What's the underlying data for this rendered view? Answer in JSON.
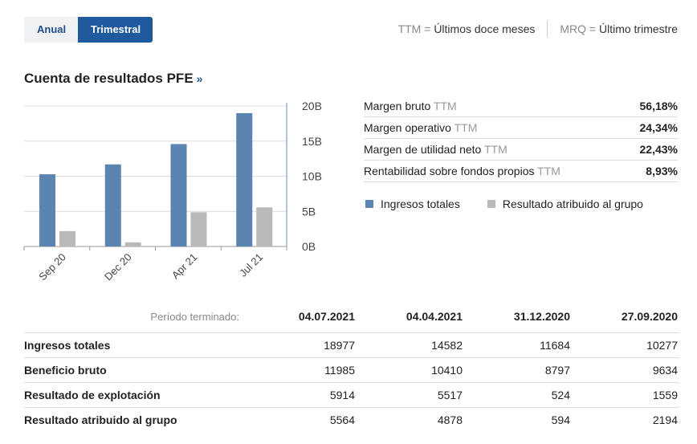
{
  "tabs": [
    {
      "label": "Anual",
      "active": false
    },
    {
      "label": "Trimestral",
      "active": true
    }
  ],
  "legend_top": {
    "ttm_abbr": "TTM =",
    "ttm_text": "Últimos doce meses",
    "mrq_abbr": "MRQ =",
    "mrq_text": "Último trimestre"
  },
  "section": {
    "title": "Cuenta de resultados PFE",
    "arrow": "»"
  },
  "ratios": [
    {
      "label": "Margen bruto",
      "ttm": "TTM",
      "value": "56,18%"
    },
    {
      "label": "Margen operativo",
      "ttm": "TTM",
      "value": "24,34%"
    },
    {
      "label": "Margen de utilidad neto",
      "ttm": "TTM",
      "value": "22,43%"
    },
    {
      "label": "Rentabilidad sobre fondos propios",
      "ttm": "TTM",
      "value": "8,93%"
    }
  ],
  "chart_data": {
    "type": "bar",
    "categories": [
      "Sep 20",
      "Dec 20",
      "Apr 21",
      "Jul 21"
    ],
    "series": [
      {
        "name": "Ingresos totales",
        "color": "#5b84b1",
        "values": [
          10277,
          11684,
          14582,
          18977
        ]
      },
      {
        "name": "Resultado atribuido al grupo",
        "color": "#b9b9b9",
        "values": [
          2194,
          594,
          4878,
          5564
        ]
      }
    ],
    "y_ticks": [
      {
        "value": 20000,
        "label": "20B"
      },
      {
        "value": 15000,
        "label": "15B"
      },
      {
        "value": 10000,
        "label": "10B"
      },
      {
        "value": 5000,
        "label": "5B"
      },
      {
        "value": 0,
        "label": "0B"
      }
    ],
    "ylim": [
      0,
      20000
    ],
    "grid": true,
    "legend": "right"
  },
  "table": {
    "period_label": "Período terminado:",
    "columns": [
      "04.07.2021",
      "04.04.2021",
      "31.12.2020",
      "27.09.2020"
    ],
    "rows": [
      {
        "label": "Ingresos totales",
        "values": [
          "18977",
          "14582",
          "11684",
          "10277"
        ]
      },
      {
        "label": "Beneficio bruto",
        "values": [
          "11985",
          "10410",
          "8797",
          "9634"
        ]
      },
      {
        "label": "Resultado de explotación",
        "values": [
          "5914",
          "5517",
          "524",
          "1559"
        ]
      },
      {
        "label": "Resultado atribuido al grupo",
        "values": [
          "5564",
          "4878",
          "594",
          "2194"
        ]
      }
    ]
  }
}
